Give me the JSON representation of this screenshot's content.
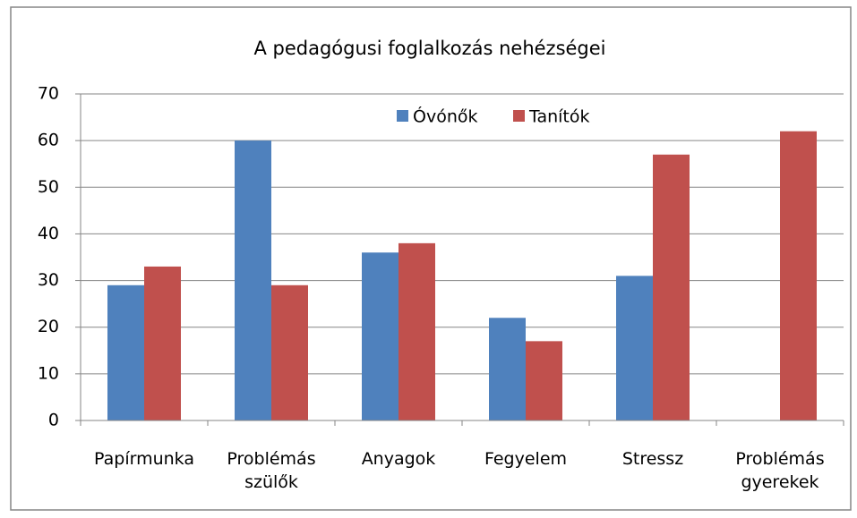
{
  "chart_data": {
    "type": "bar",
    "title": "A pedagógusi foglalkozás nehézségei",
    "categories": [
      "Papírmunka",
      "Problémás szülők",
      "Anyagok",
      "Fegyelem",
      "Stressz",
      "Problémás gyerekek"
    ],
    "series": [
      {
        "name": "Óvónők",
        "color": "#4f81bd",
        "values": [
          29,
          60,
          36,
          22,
          31,
          0
        ]
      },
      {
        "name": "Tanítók",
        "color": "#c0504d",
        "values": [
          33,
          29,
          38,
          17,
          57,
          62
        ]
      }
    ],
    "ylim": [
      0,
      70
    ],
    "yticks": [
      0,
      10,
      20,
      30,
      40,
      50,
      60,
      70
    ],
    "grid": true,
    "legend": "top"
  }
}
